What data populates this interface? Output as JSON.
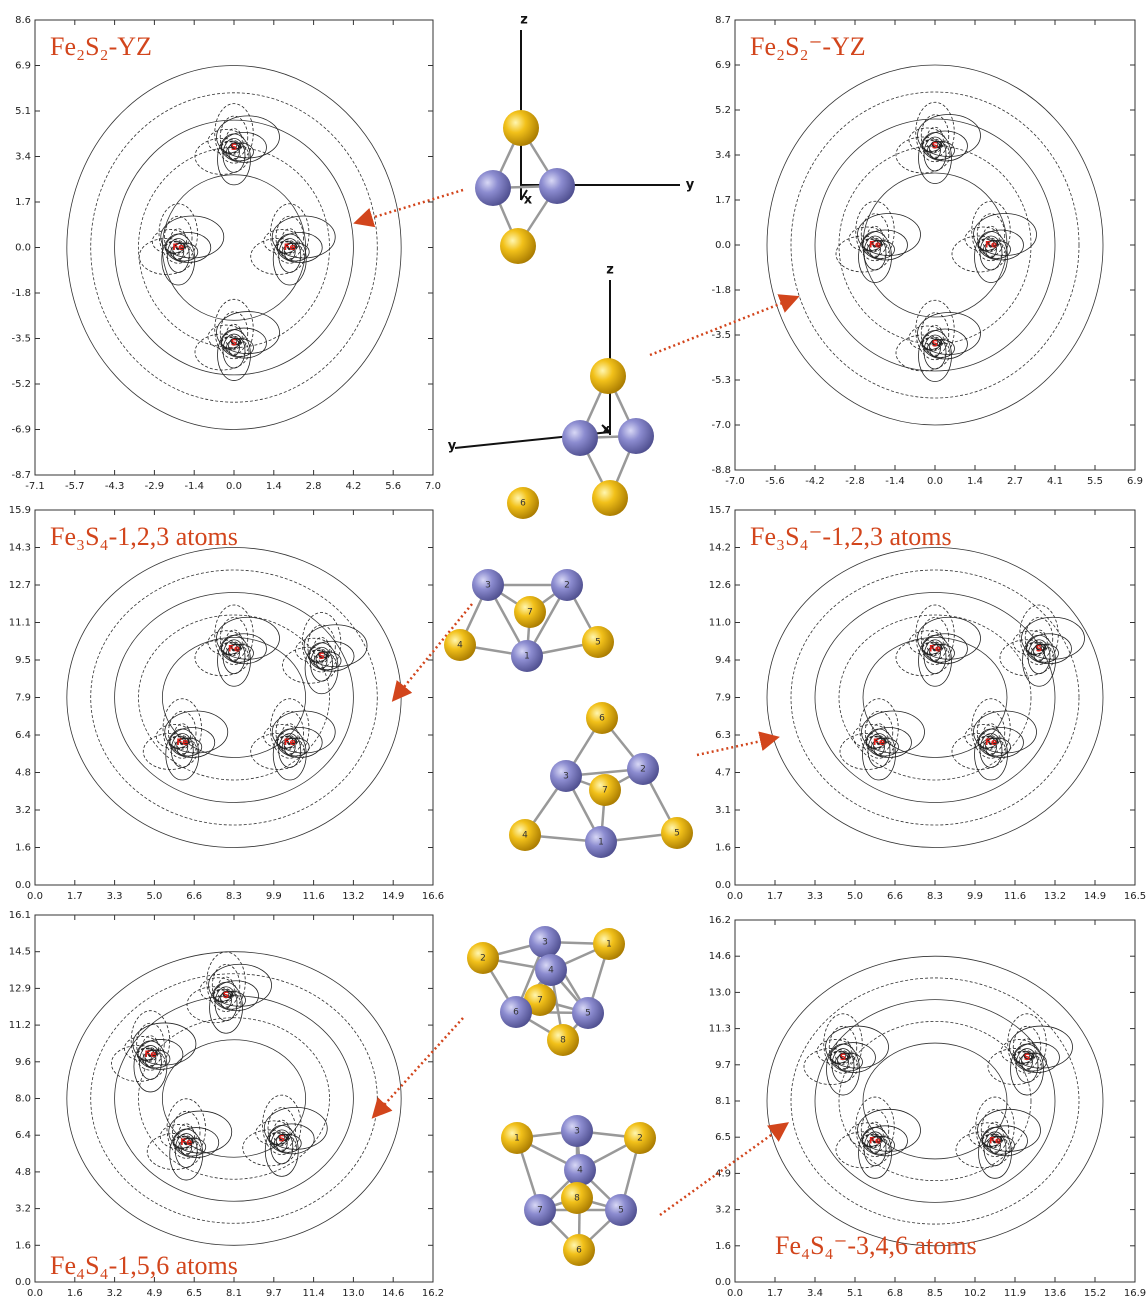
{
  "panels": [
    {
      "title": "Fe₂S₂-YZ",
      "yticks": [
        "8.6",
        "6.9",
        "5.1",
        "3.4",
        "1.7",
        "0.0",
        "-1.8",
        "-3.5",
        "-5.2",
        "-6.9",
        "-8.7"
      ],
      "xticks": [
        "-7.1",
        "-5.7",
        "-4.3",
        "-2.9",
        "-1.4",
        "0.0",
        "1.4",
        "2.8",
        "4.2",
        "5.6",
        "7.0"
      ],
      "atoms": [
        "S",
        "Fe",
        "Fe",
        "S"
      ]
    },
    {
      "title": "Fe₂S₂⁻-YZ",
      "yticks": [
        "8.7",
        "6.9",
        "5.2",
        "3.4",
        "1.7",
        "0.0",
        "-1.8",
        "-3.5",
        "-5.3",
        "-7.0",
        "-8.8"
      ],
      "xticks": [
        "-7.0",
        "-5.6",
        "-4.2",
        "-2.8",
        "-1.4",
        "0.0",
        "1.4",
        "2.7",
        "4.1",
        "5.5",
        "6.9"
      ],
      "atoms": [
        "S",
        "Fe",
        "Fe",
        "S"
      ]
    },
    {
      "title": "Fe₃S₄-1,2,3 atoms",
      "yticks": [
        "15.9",
        "14.3",
        "12.7",
        "11.1",
        "9.5",
        "7.9",
        "6.4",
        "4.8",
        "3.2",
        "1.6",
        "0.0"
      ],
      "xticks": [
        "0.0",
        "1.7",
        "3.3",
        "5.0",
        "6.6",
        "8.3",
        "9.9",
        "11.6",
        "13.2",
        "14.9",
        "16.6"
      ],
      "atoms": [
        "Fe",
        "S",
        "Fe",
        "Fe"
      ]
    },
    {
      "title": "Fe₃S₄⁻-1,2,3 atoms",
      "yticks": [
        "15.7",
        "14.2",
        "12.6",
        "11.0",
        "9.4",
        "7.9",
        "6.3",
        "4.7",
        "3.1",
        "1.6",
        "0.0"
      ],
      "xticks": [
        "0.0",
        "1.7",
        "3.3",
        "5.0",
        "6.6",
        "8.3",
        "9.9",
        "11.6",
        "13.2",
        "14.9",
        "16.5"
      ],
      "atoms": [
        "Fe",
        "S",
        "Fe",
        "Fe"
      ]
    },
    {
      "title": "Fe₄S₄-1,5,6 atoms",
      "yticks": [
        "16.1",
        "14.5",
        "12.9",
        "11.2",
        "9.6",
        "8.0",
        "6.4",
        "4.8",
        "3.2",
        "1.6",
        "0.0"
      ],
      "xticks": [
        "0.0",
        "1.6",
        "3.2",
        "4.9",
        "6.5",
        "8.1",
        "9.7",
        "11.4",
        "13.0",
        "14.6",
        "16.2"
      ],
      "atoms": [
        "Fe",
        "S",
        "Fe",
        "S"
      ]
    },
    {
      "title": "Fe₄S₄⁻-3,4,6 atoms",
      "yticks": [
        "16.2",
        "14.6",
        "13.0",
        "11.3",
        "9.7",
        "8.1",
        "6.5",
        "4.9",
        "3.2",
        "1.6",
        "0.0"
      ],
      "xticks": [
        "0.0",
        "1.7",
        "3.4",
        "5.1",
        "6.8",
        "8.5",
        "10.2",
        "11.9",
        "13.6",
        "15.2",
        "16.9"
      ],
      "atoms": [
        "S",
        "S",
        "Fe",
        "Fe"
      ]
    }
  ],
  "molecules": [
    {
      "axes": [
        "z",
        "y",
        "x"
      ]
    },
    {
      "axes": [
        "z",
        "y",
        "x"
      ]
    },
    {
      "labels": [
        "6",
        "3",
        "2",
        "7",
        "4",
        "5",
        "1"
      ]
    },
    {
      "labels": [
        "6",
        "3",
        "2",
        "7",
        "4",
        "5",
        "1"
      ]
    },
    {
      "labels": [
        "2",
        "3",
        "1",
        "4",
        "7",
        "6",
        "5",
        "8"
      ]
    },
    {
      "labels": [
        "1",
        "3",
        "2",
        "4",
        "8",
        "7",
        "5",
        "6"
      ]
    }
  ]
}
